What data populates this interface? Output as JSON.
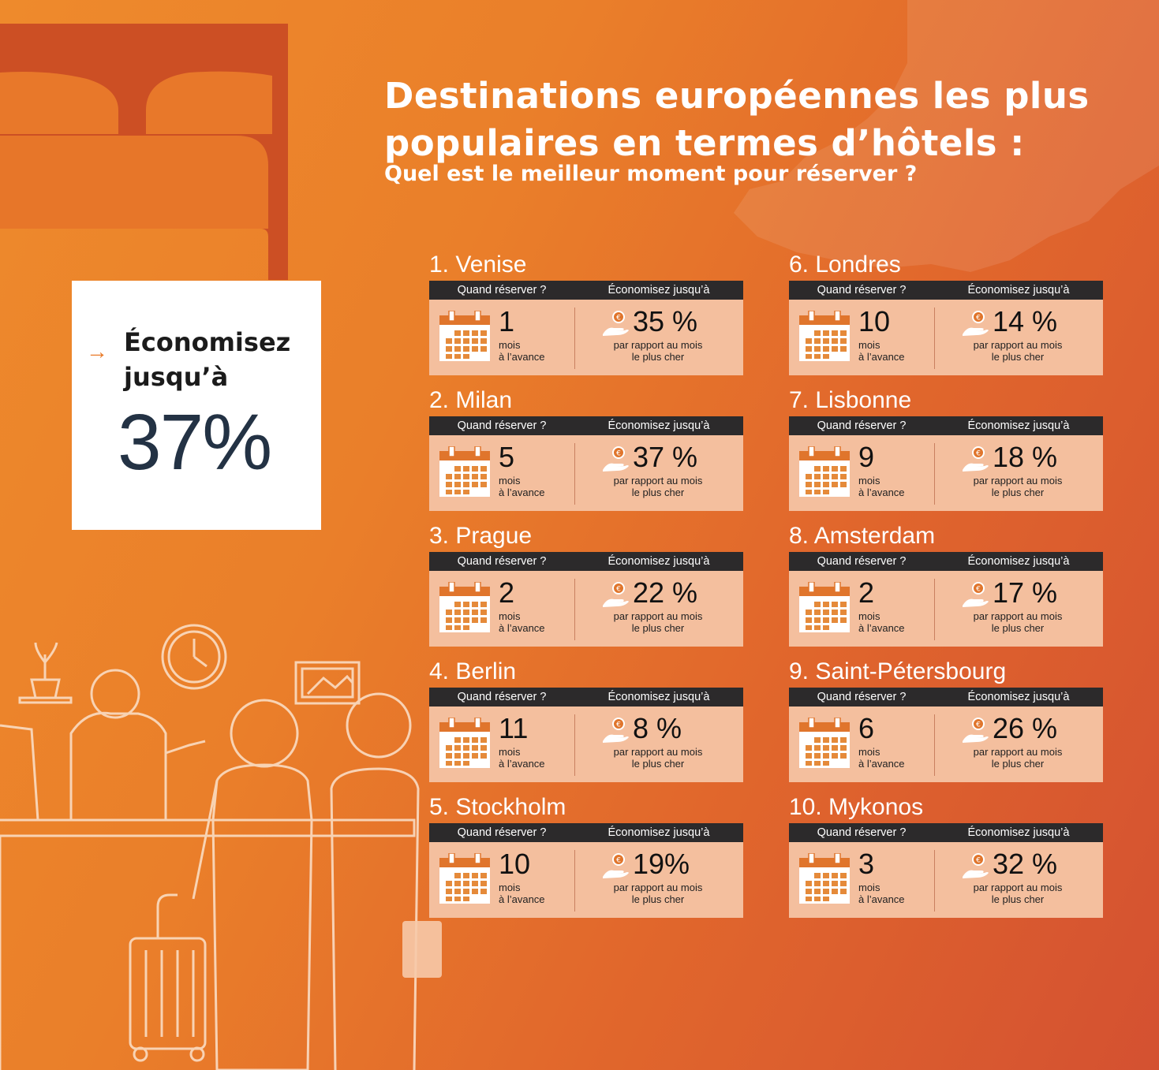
{
  "title": {
    "line1": "Destinations européennes les plus",
    "line2": "populaires en termes d’hôtels :",
    "subtitle": "Quel est le meilleur moment pour réserver ?"
  },
  "promo": {
    "label_line1": "Économisez",
    "label_line2": "jusqu’à",
    "value": "37%"
  },
  "common": {
    "when_header": "Quand réserver ?",
    "save_header": "Économisez jusqu’à",
    "months_line1": "mois",
    "months_line2": "à l’avance",
    "compare_line1": "par rapport au mois",
    "compare_line2": "le plus cher"
  },
  "destinations": [
    {
      "rank_name": "1. Venise",
      "months": "1",
      "savings": "35 %"
    },
    {
      "rank_name": "2. Milan",
      "months": "5",
      "savings": "37 %"
    },
    {
      "rank_name": "3. Prague",
      "months": "2",
      "savings": "22 %"
    },
    {
      "rank_name": "4. Berlin",
      "months": "11",
      "savings": "8 %"
    },
    {
      "rank_name": "5. Stockholm",
      "months": "10",
      "savings": "19%"
    },
    {
      "rank_name": "6. Londres",
      "months": "10",
      "savings": "14 %"
    },
    {
      "rank_name": "7. Lisbonne",
      "months": "9",
      "savings": "18 %"
    },
    {
      "rank_name": "8. Amsterdam",
      "months": "2",
      "savings": "17 %"
    },
    {
      "rank_name": "9. Saint-Pétersbourg",
      "months": "6",
      "savings": "26 %"
    },
    {
      "rank_name": "10. Mykonos",
      "months": "3",
      "savings": "32 %"
    }
  ],
  "icons": {
    "calendar": "calendar-icon",
    "savings": "coin-hand-icon",
    "arrow": "arrow-right-icon"
  },
  "colors": {
    "accent": "#e97b2a",
    "card_body": "#f4bf9e",
    "card_header": "#2c2a2b",
    "promo_value": "#233244"
  }
}
